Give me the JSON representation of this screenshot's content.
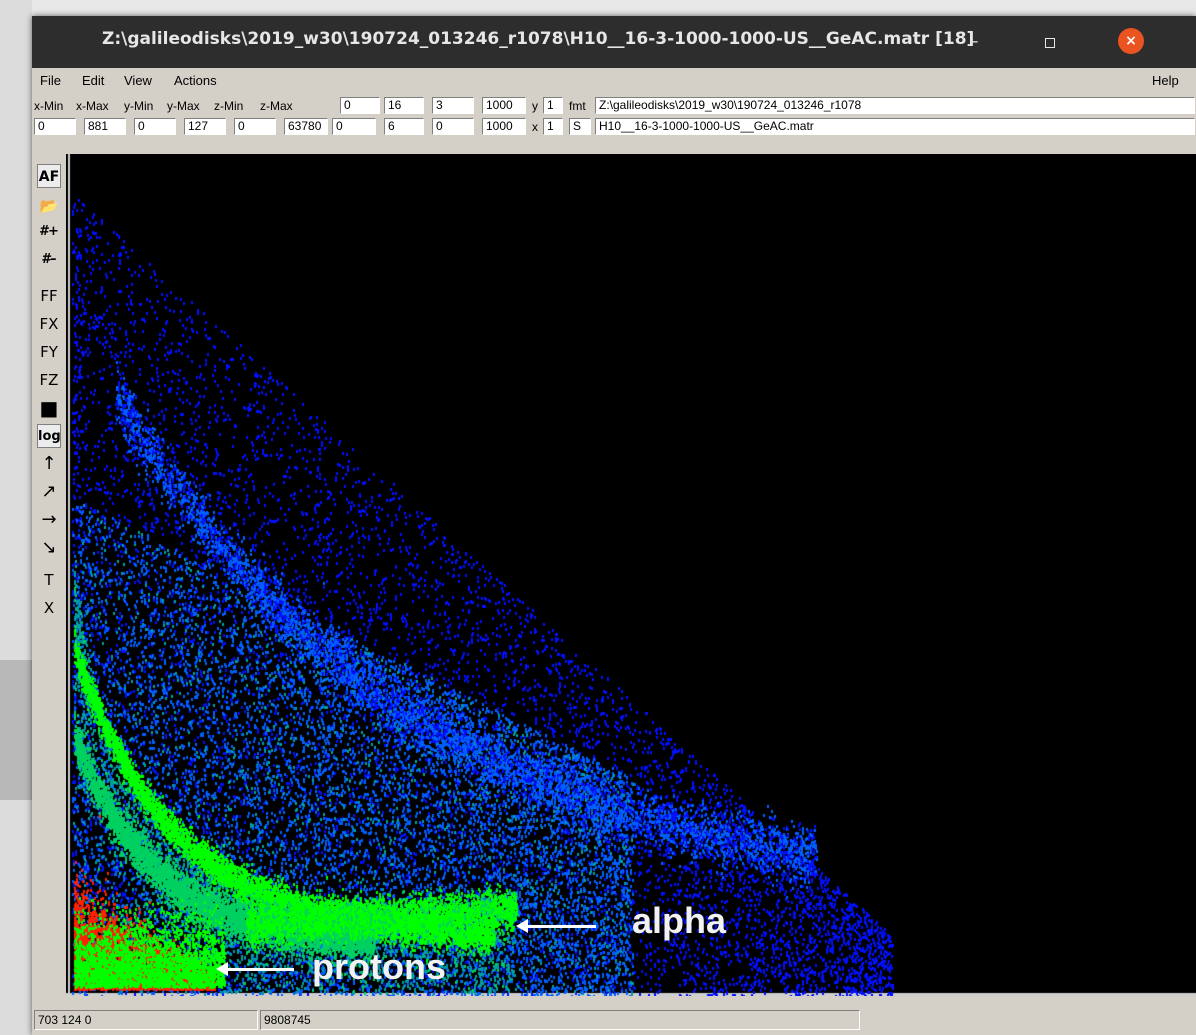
{
  "window": {
    "title": "Z:\\galileodisks\\2019_w30\\190724_013246_r1078\\H10__16-3-1000-1000-US__GeAC.matr [18]",
    "minimize_label": "–",
    "close_label": "×"
  },
  "menu": {
    "file": "File",
    "edit": "Edit",
    "view": "View",
    "actions": "Actions",
    "help": "Help"
  },
  "params": {
    "labels": [
      "x-Min",
      "x-Max",
      "y-Min",
      "y-Max",
      "z-Min",
      "z-Max"
    ],
    "row1_values": [
      "0",
      "16",
      "3",
      "1000"
    ],
    "row2_values": [
      "0",
      "881",
      "0",
      "127",
      "0",
      "63780",
      "0",
      "6",
      "0",
      "1000"
    ],
    "y_label": "y",
    "y_value": "1",
    "x_label": "x",
    "x_value": "1",
    "fmt_label": "fmt",
    "s_label": "S",
    "path": "Z:\\galileodisks\\2019_w30\\190724_013246_r1078",
    "filename": "H10__16-3-1000-1000-US__GeAC.matr"
  },
  "tools": [
    "AF",
    "open-folder-icon",
    "#+",
    "#–",
    "FF",
    "FX",
    "FY",
    "FZ",
    "fill-square-icon",
    "log",
    "↑",
    "↗",
    "→",
    "↘",
    "T",
    "X"
  ],
  "tool_labels": {
    "af": "AF",
    "zoom_in": "#+",
    "zoom_out": "#–",
    "ff": "FF",
    "fx": "FX",
    "fy": "FY",
    "fz": "FZ",
    "log": "log",
    "up": "↑",
    "up_right": "↗",
    "right": "→",
    "down_right": "↘",
    "text": "T",
    "close": "X",
    "open": "📂",
    "square": "■"
  },
  "annotations": {
    "alpha": "alpha",
    "protons": "protons"
  },
  "status": {
    "cursor": "703 124 0",
    "total": "9808745"
  },
  "colors": {
    "background": "#000000",
    "low": "#0000ff",
    "mid": "#00c8c8",
    "high": "#00ff00",
    "peak": "#ff0000",
    "close_button": "#e95420"
  }
}
